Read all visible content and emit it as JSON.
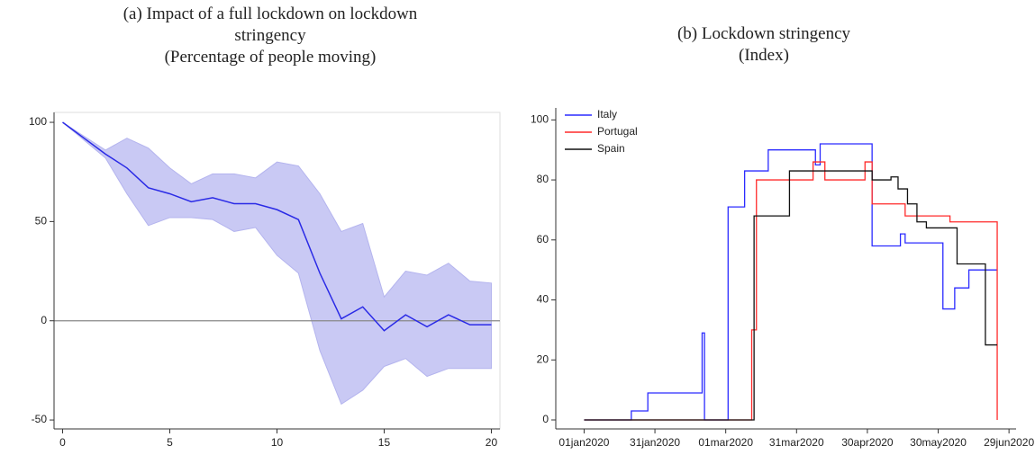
{
  "chart_data": [
    {
      "type": "line",
      "title": "(a) Impact of a full lockdown on lockdown stringency",
      "subtitle": "(Percentage of people moving)",
      "x": [
        0,
        1,
        2,
        3,
        4,
        5,
        6,
        7,
        8,
        9,
        10,
        11,
        12,
        13,
        14,
        15,
        16,
        17,
        18,
        19,
        20
      ],
      "values": [
        100,
        92,
        84,
        77,
        67,
        64,
        60,
        62,
        59,
        59,
        56,
        51,
        24,
        1,
        7,
        -5,
        3,
        -3,
        3,
        -2,
        -2
      ],
      "ci_upper": [
        100,
        93,
        86,
        92,
        87,
        77,
        69,
        74,
        74,
        72,
        80,
        78,
        64,
        45,
        49,
        12,
        25,
        23,
        29,
        20,
        19
      ],
      "ci_lower": [
        100,
        91,
        82,
        64,
        48,
        52,
        52,
        51,
        45,
        47,
        33,
        24,
        -15,
        -42,
        -35,
        -23,
        -19,
        -28,
        -24,
        -24,
        -24
      ],
      "color": "#2a2ae6",
      "band_color": "#c9c9f4",
      "reference_line": 0,
      "xlim": [
        -0.4,
        20.4
      ],
      "ylim": [
        -54.5,
        105
      ],
      "xticks": [
        0,
        5,
        10,
        15,
        20
      ],
      "yticks": [
        -50,
        0,
        50,
        100
      ],
      "frame": true
    },
    {
      "type": "line",
      "title": "(b) Lockdown stringency",
      "subtitle": "(Index)",
      "legend": "top-left",
      "series": [
        {
          "name": "Italy",
          "color": "#2b2bff",
          "x": [
            0,
            20,
            20,
            27,
            27,
            50,
            50,
            51,
            51,
            61,
            61,
            68,
            68,
            78,
            78,
            98,
            98,
            100,
            100,
            122,
            122,
            134,
            134,
            136,
            136,
            152,
            152,
            157,
            157,
            163,
            163,
            175
          ],
          "values": [
            0,
            0,
            3,
            3,
            9,
            9,
            29,
            29,
            0,
            0,
            71,
            71,
            83,
            83,
            90,
            90,
            85,
            85,
            92,
            92,
            58,
            58,
            62,
            62,
            59,
            59,
            37,
            37,
            44,
            44,
            50,
            50
          ]
        },
        {
          "name": "Portugal",
          "color": "#ff2a2a",
          "x": [
            0,
            71,
            71,
            73,
            73,
            97,
            97,
            102,
            102,
            119,
            119,
            122,
            122,
            136,
            136,
            155,
            155,
            175,
            175
          ],
          "values": [
            0,
            0,
            30,
            30,
            80,
            80,
            86,
            86,
            80,
            80,
            86,
            86,
            72,
            72,
            68,
            68,
            66,
            66,
            0
          ]
        },
        {
          "name": "Spain",
          "color": "#111111",
          "x": [
            0,
            72,
            72,
            87,
            87,
            122,
            122,
            130,
            130,
            133,
            133,
            137,
            137,
            141,
            141,
            145,
            145,
            149,
            149,
            158,
            158,
            170,
            170,
            175
          ],
          "values": [
            0,
            0,
            68,
            68,
            83,
            83,
            80,
            80,
            81,
            81,
            77,
            77,
            72,
            72,
            66,
            66,
            64,
            64,
            64,
            64,
            52,
            52,
            25,
            25
          ]
        }
      ],
      "xlim": [
        -12,
        183
      ],
      "ylim": [
        -3,
        104
      ],
      "xticks": [
        {
          "value": 0,
          "label": "01jan2020"
        },
        {
          "value": 30,
          "label": "31jan2020"
        },
        {
          "value": 60,
          "label": "01mar2020"
        },
        {
          "value": 90,
          "label": "31mar2020"
        },
        {
          "value": 120,
          "label": "30apr2020"
        },
        {
          "value": 150,
          "label": "30may2020"
        },
        {
          "value": 180,
          "label": "29jun2020"
        }
      ],
      "yticks": [
        0,
        20,
        40,
        60,
        80,
        100
      ],
      "frame": false
    }
  ]
}
